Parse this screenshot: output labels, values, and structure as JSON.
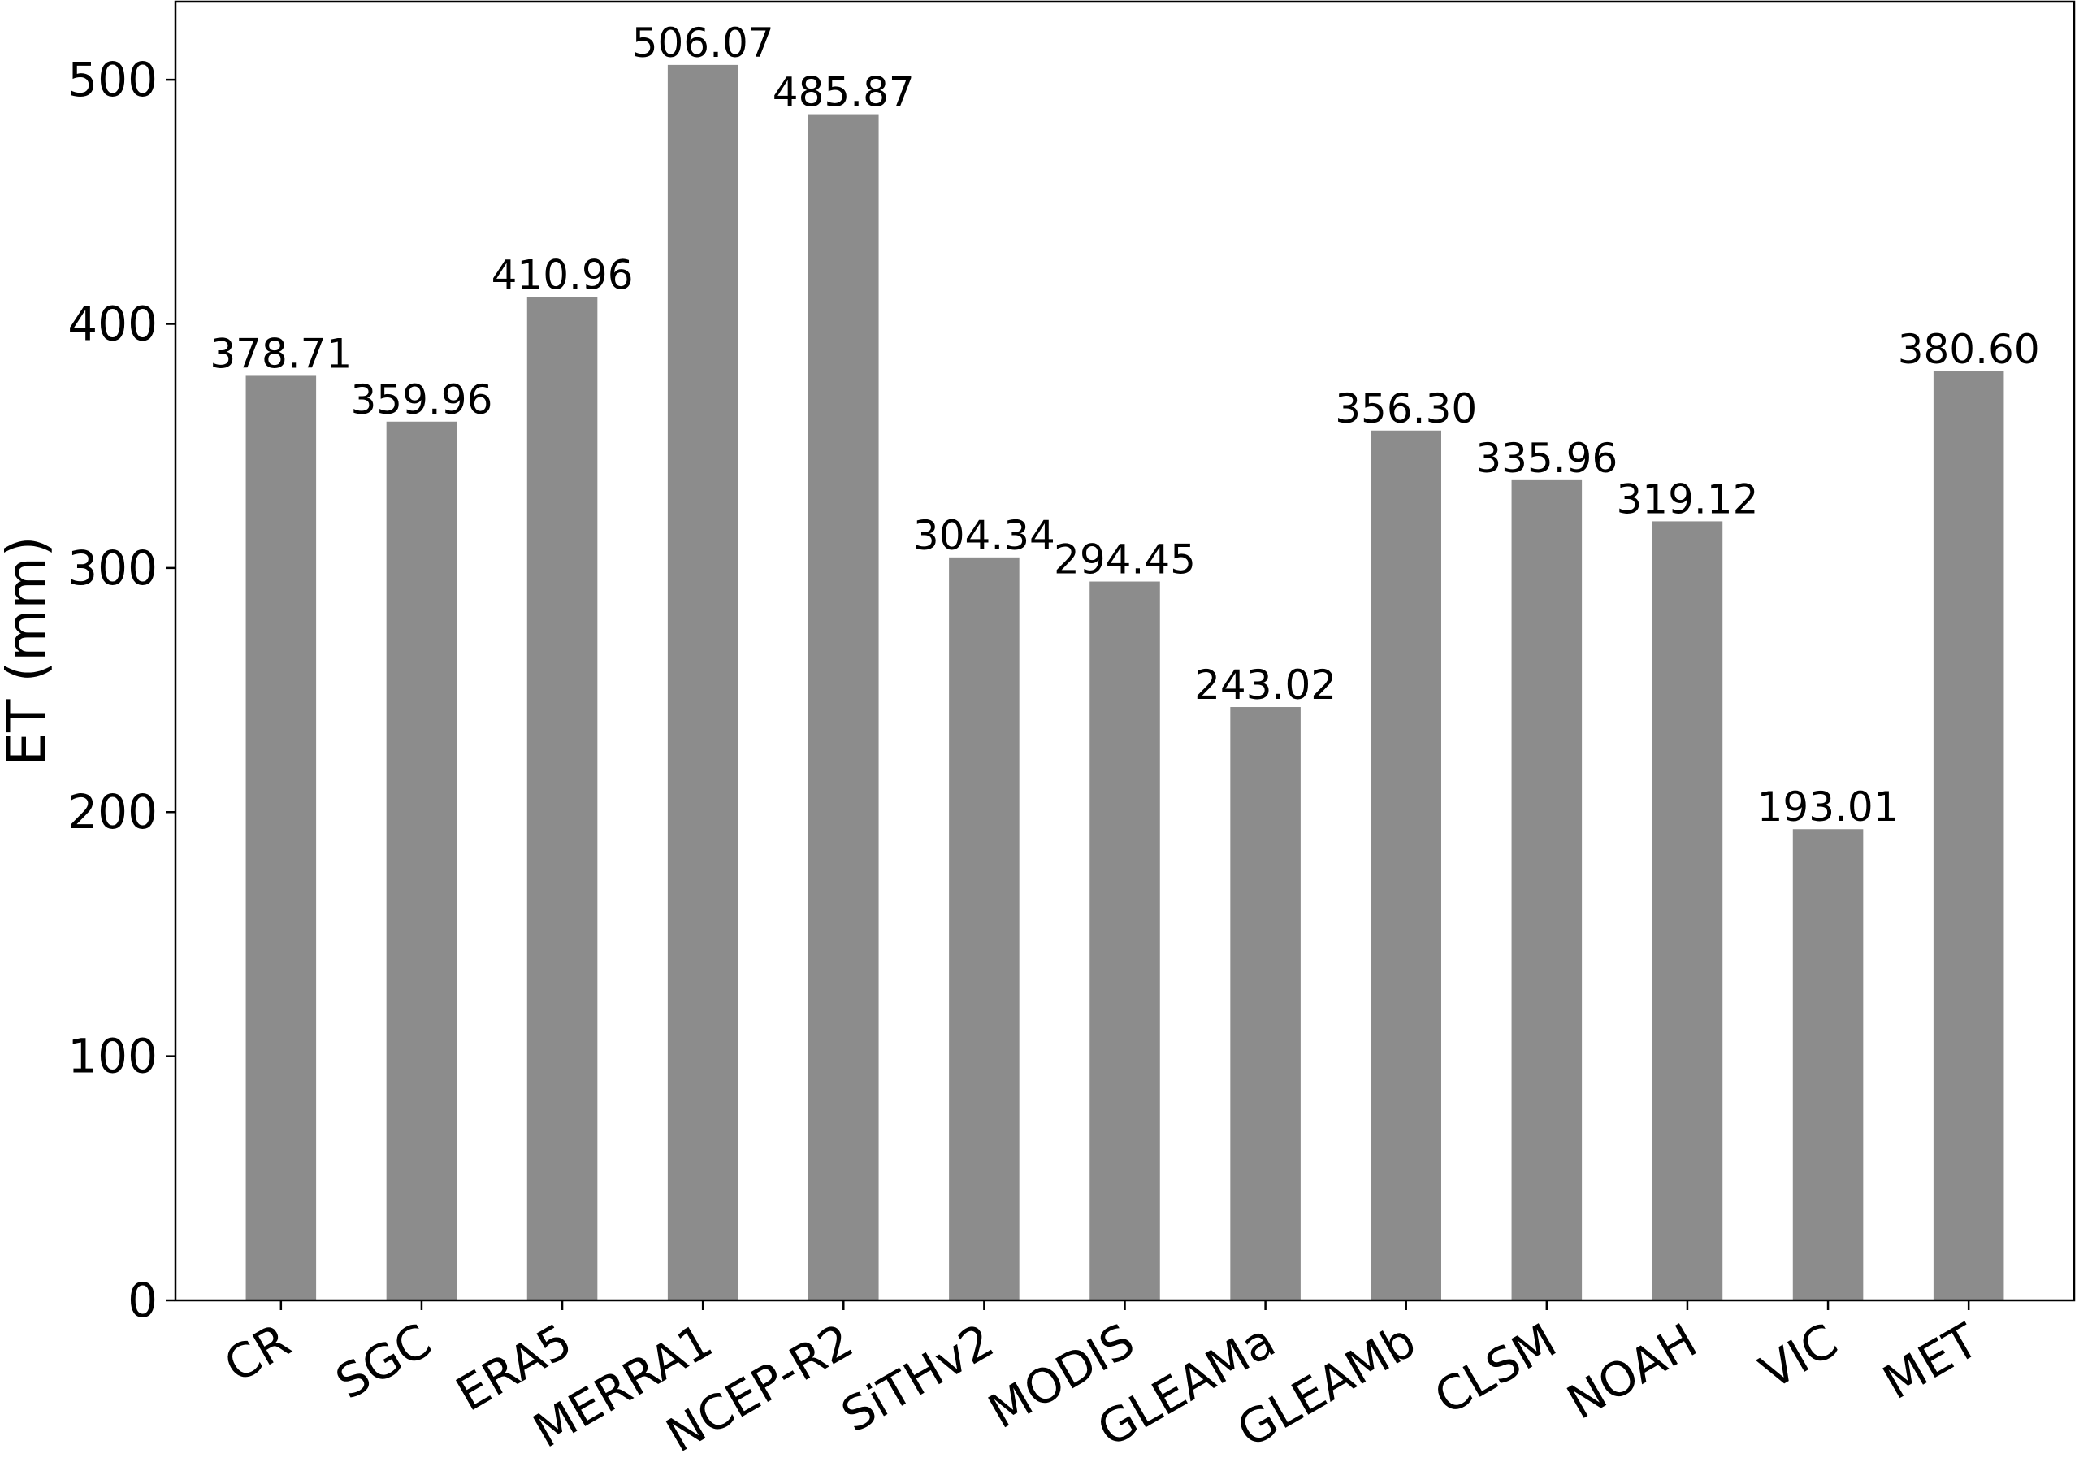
{
  "chart_data": {
    "type": "bar",
    "title": "",
    "xlabel": "",
    "ylabel": "ET (mm)",
    "categories": [
      "CR",
      "SGC",
      "ERA5",
      "MERRA1",
      "NCEP-R2",
      "SiTHv2",
      "MODIS",
      "GLEAMa",
      "GLEAMb",
      "CLSM",
      "NOAH",
      "VIC",
      "MET"
    ],
    "values": [
      378.71,
      359.96,
      410.96,
      506.07,
      485.87,
      304.34,
      294.45,
      243.02,
      356.3,
      335.96,
      319.12,
      193.01,
      380.6
    ],
    "value_labels": [
      "378.71",
      "359.96",
      "410.96",
      "506.07",
      "485.87",
      "304.34",
      "294.45",
      "243.02",
      "356.30",
      "335.96",
      "319.12",
      "193.01",
      "380.60"
    ],
    "ylim": [
      0,
      532
    ],
    "yticks": [
      0,
      100,
      200,
      300,
      400,
      500
    ],
    "ytick_labels": [
      "0",
      "100",
      "200",
      "300",
      "400",
      "500"
    ],
    "bar_color": "#8c8c8c",
    "grid": false,
    "legend": "none"
  }
}
